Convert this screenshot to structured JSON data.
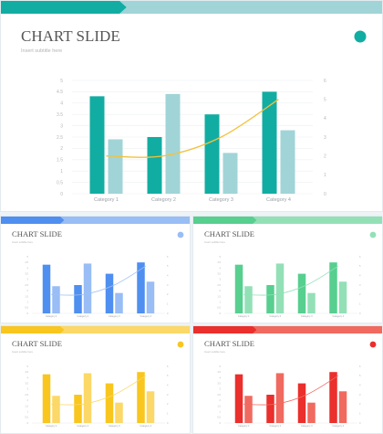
{
  "slides": [
    {
      "id": "main",
      "title": "CHART SLIDE",
      "subtitle": "Insert subtitle here",
      "colors": {
        "barDark": "#11ada2",
        "barLight": "#a1d4d7",
        "line": "#f2c23d",
        "ribbonDark": "#11ada2",
        "ribbonLight": "#a1d4d7",
        "dot": "#11ada2"
      }
    },
    {
      "id": "blue",
      "title": "CHART SLIDE",
      "subtitle": "Insert subtitle here",
      "colors": {
        "barDark": "#4f8ff0",
        "barLight": "#99bdf5",
        "line": "#9ec0f6",
        "ribbonDark": "#4f8ff0",
        "ribbonLight": "#99bdf5",
        "dot": "#99bdf5"
      }
    },
    {
      "id": "green",
      "title": "CHART SLIDE",
      "subtitle": "Insert subtitle here",
      "colors": {
        "barDark": "#57cf8f",
        "barLight": "#93e0b7",
        "line": "#93e0b7",
        "ribbonDark": "#57cf8f",
        "ribbonLight": "#93e0b7",
        "dot": "#93e0b7"
      }
    },
    {
      "id": "yellow",
      "title": "CHART SLIDE",
      "subtitle": "Insert subtitle here",
      "colors": {
        "barDark": "#f8c61e",
        "barLight": "#fbd867",
        "line": "#fbd867",
        "ribbonDark": "#f8c61e",
        "ribbonLight": "#fbd867",
        "dot": "#f8c61e"
      }
    },
    {
      "id": "red",
      "title": "CHART SLIDE",
      "subtitle": "Insert subtitle here",
      "colors": {
        "barDark": "#ea2f2c",
        "barLight": "#f06a60",
        "line": "#f06a60",
        "ribbonDark": "#ea2f2c",
        "ribbonLight": "#f06a60",
        "dot": "#ea2f2c"
      }
    }
  ],
  "chart_data": {
    "type": "bar",
    "categories": [
      "Category 1",
      "Category 2",
      "Category 3",
      "Category 4"
    ],
    "series": [
      {
        "values": [
          4.3,
          2.5,
          3.5,
          4.5
        ],
        "kind": "bar"
      },
      {
        "values": [
          2.4,
          4.4,
          1.8,
          2.8
        ],
        "kind": "bar"
      },
      {
        "values": [
          2,
          2,
          3,
          5
        ],
        "kind": "line",
        "axis": "secondary"
      }
    ],
    "yticks": [
      "0",
      "0.5",
      "1",
      "1.5",
      "2",
      "2.5",
      "3",
      "3.5",
      "4",
      "4.5",
      "5"
    ],
    "y2ticks": [
      "0",
      "1",
      "2",
      "3",
      "4",
      "5",
      "6"
    ],
    "ylim": [
      0,
      5
    ],
    "y2lim": [
      0,
      6
    ],
    "grid": true
  }
}
